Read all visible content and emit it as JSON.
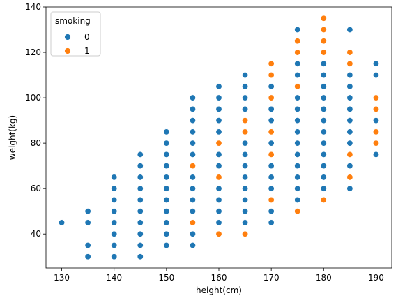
{
  "chart_data": {
    "type": "scatter",
    "xlabel": "height(cm)",
    "ylabel": "weight(kg)",
    "xlim": [
      127,
      193
    ],
    "ylim": [
      25,
      140
    ],
    "xticks": [
      130,
      140,
      150,
      160,
      170,
      180,
      190
    ],
    "yticks": [
      40,
      60,
      80,
      100,
      120,
      140
    ],
    "grid": false,
    "legend": {
      "title": "smoking",
      "placement": "top-left",
      "entries": [
        {
          "label": "0",
          "color": "#1f77b4"
        },
        {
          "label": "1",
          "color": "#ff7f0e"
        }
      ]
    },
    "series": [
      {
        "name": "0",
        "color": "#1f77b4",
        "points": [
          [
            130,
            45
          ],
          [
            135,
            30
          ],
          [
            135,
            35
          ],
          [
            135,
            45
          ],
          [
            135,
            50
          ],
          [
            140,
            30
          ],
          [
            140,
            35
          ],
          [
            140,
            40
          ],
          [
            140,
            45
          ],
          [
            140,
            50
          ],
          [
            140,
            55
          ],
          [
            140,
            60
          ],
          [
            140,
            65
          ],
          [
            145,
            30
          ],
          [
            145,
            35
          ],
          [
            145,
            40
          ],
          [
            145,
            45
          ],
          [
            145,
            50
          ],
          [
            145,
            55
          ],
          [
            145,
            60
          ],
          [
            145,
            65
          ],
          [
            145,
            70
          ],
          [
            145,
            75
          ],
          [
            150,
            35
          ],
          [
            150,
            40
          ],
          [
            150,
            45
          ],
          [
            150,
            50
          ],
          [
            150,
            55
          ],
          [
            150,
            60
          ],
          [
            150,
            65
          ],
          [
            150,
            70
          ],
          [
            150,
            75
          ],
          [
            150,
            80
          ],
          [
            150,
            85
          ],
          [
            155,
            35
          ],
          [
            155,
            40
          ],
          [
            155,
            50
          ],
          [
            155,
            55
          ],
          [
            155,
            60
          ],
          [
            155,
            65
          ],
          [
            155,
            75
          ],
          [
            155,
            80
          ],
          [
            155,
            85
          ],
          [
            155,
            90
          ],
          [
            155,
            95
          ],
          [
            155,
            100
          ],
          [
            160,
            45
          ],
          [
            160,
            50
          ],
          [
            160,
            55
          ],
          [
            160,
            60
          ],
          [
            160,
            70
          ],
          [
            160,
            75
          ],
          [
            160,
            85
          ],
          [
            160,
            90
          ],
          [
            160,
            95
          ],
          [
            160,
            100
          ],
          [
            160,
            105
          ],
          [
            165,
            45
          ],
          [
            165,
            50
          ],
          [
            165,
            55
          ],
          [
            165,
            60
          ],
          [
            165,
            65
          ],
          [
            165,
            70
          ],
          [
            165,
            75
          ],
          [
            165,
            80
          ],
          [
            165,
            95
          ],
          [
            165,
            100
          ],
          [
            165,
            105
          ],
          [
            165,
            110
          ],
          [
            170,
            45
          ],
          [
            170,
            50
          ],
          [
            170,
            60
          ],
          [
            170,
            65
          ],
          [
            170,
            70
          ],
          [
            170,
            80
          ],
          [
            170,
            90
          ],
          [
            170,
            95
          ],
          [
            170,
            105
          ],
          [
            175,
            55
          ],
          [
            175,
            60
          ],
          [
            175,
            65
          ],
          [
            175,
            70
          ],
          [
            175,
            75
          ],
          [
            175,
            80
          ],
          [
            175,
            85
          ],
          [
            175,
            90
          ],
          [
            175,
            95
          ],
          [
            175,
            100
          ],
          [
            175,
            110
          ],
          [
            175,
            115
          ],
          [
            175,
            130
          ],
          [
            180,
            60
          ],
          [
            180,
            65
          ],
          [
            180,
            70
          ],
          [
            180,
            75
          ],
          [
            180,
            80
          ],
          [
            180,
            85
          ],
          [
            180,
            90
          ],
          [
            180,
            95
          ],
          [
            180,
            100
          ],
          [
            180,
            105
          ],
          [
            180,
            110
          ],
          [
            180,
            115
          ],
          [
            185,
            60
          ],
          [
            185,
            70
          ],
          [
            185,
            80
          ],
          [
            185,
            85
          ],
          [
            185,
            90
          ],
          [
            185,
            95
          ],
          [
            185,
            100
          ],
          [
            185,
            105
          ],
          [
            185,
            110
          ],
          [
            185,
            130
          ],
          [
            190,
            75
          ],
          [
            190,
            90
          ],
          [
            190,
            110
          ],
          [
            190,
            115
          ]
        ]
      },
      {
        "name": "1",
        "color": "#ff7f0e",
        "points": [
          [
            155,
            45
          ],
          [
            155,
            70
          ],
          [
            160,
            40
          ],
          [
            160,
            65
          ],
          [
            160,
            80
          ],
          [
            165,
            40
          ],
          [
            165,
            85
          ],
          [
            165,
            90
          ],
          [
            170,
            55
          ],
          [
            170,
            75
          ],
          [
            170,
            85
          ],
          [
            170,
            100
          ],
          [
            170,
            110
          ],
          [
            170,
            115
          ],
          [
            175,
            50
          ],
          [
            175,
            105
          ],
          [
            175,
            120
          ],
          [
            175,
            125
          ],
          [
            180,
            55
          ],
          [
            180,
            120
          ],
          [
            180,
            125
          ],
          [
            180,
            130
          ],
          [
            180,
            135
          ],
          [
            185,
            65
          ],
          [
            185,
            75
          ],
          [
            185,
            115
          ],
          [
            185,
            120
          ],
          [
            190,
            80
          ],
          [
            190,
            85
          ],
          [
            190,
            95
          ],
          [
            190,
            100
          ]
        ]
      }
    ]
  }
}
